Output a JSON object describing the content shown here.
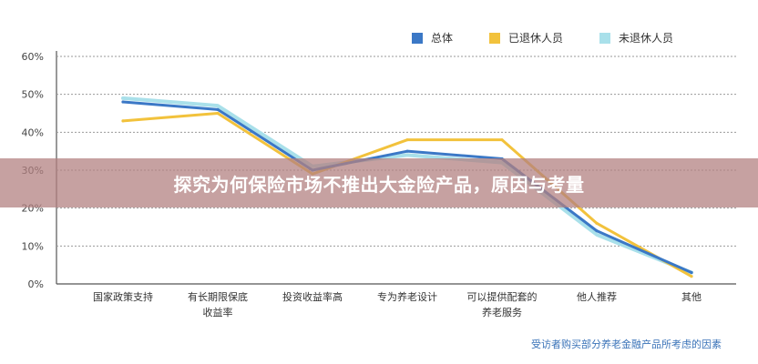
{
  "banner": {
    "title": "探究为何保险市场不推出大金险产品，原因与考量"
  },
  "footnote": "受访者购买部分养老金融产品所考虑的因素",
  "chart_data": {
    "type": "line",
    "categories": [
      [
        "国家政策支持"
      ],
      [
        "有长期限保底",
        "收益率"
      ],
      [
        "投资收益率高"
      ],
      [
        "专为养老设计"
      ],
      [
        "可以提供配套的",
        "养老服务"
      ],
      [
        "他人推荐"
      ],
      [
        "其他"
      ]
    ],
    "y_ticks": [
      "0%",
      "10%",
      "20%",
      "30%",
      "40%",
      "50%",
      "60%"
    ],
    "ylim": [
      0,
      60
    ],
    "grid": true,
    "legend_position": "top-right",
    "series": [
      {
        "name": "总体",
        "color": "#3b78c6",
        "values": [
          48,
          46,
          30,
          35,
          33,
          14,
          3
        ]
      },
      {
        "name": "已退休人员",
        "color": "#f2c23c",
        "values": [
          43,
          45,
          29,
          38,
          38,
          16,
          2
        ]
      },
      {
        "name": "未退休人员",
        "color": "#a9e0ea",
        "values": [
          49,
          47,
          31,
          34,
          32,
          13,
          3
        ]
      }
    ]
  }
}
